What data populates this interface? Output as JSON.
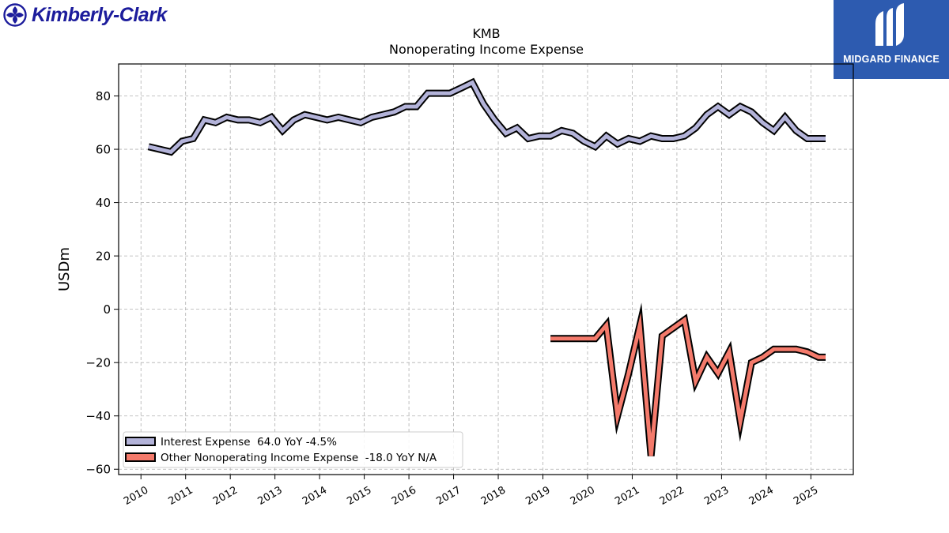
{
  "logos": {
    "left_brand": "Kimberly-Clark",
    "left_brand_color": "#1c1c9c",
    "right_brand": "MIDGARD FINANCE",
    "right_brand_color": "#2d5bb0"
  },
  "chart_data": {
    "type": "line",
    "title": "KMB",
    "subtitle": "Nonoperating Income Expense",
    "ylabel": "USDm",
    "xlabel": "",
    "xlim": [
      2009.5,
      2025.95
    ],
    "ylim": [
      -62,
      92
    ],
    "yticks": [
      -60,
      -40,
      -20,
      0,
      20,
      40,
      60,
      80
    ],
    "xticks": [
      2010,
      2011,
      2012,
      2013,
      2014,
      2015,
      2016,
      2017,
      2018,
      2019,
      2020,
      2021,
      2022,
      2023,
      2024,
      2025
    ],
    "grid": true,
    "legend_position": "lower-left",
    "series": [
      {
        "name": "Interest Expense",
        "legend_label": "Interest Expense  64.0 YoY -4.5%",
        "color": "#b3b3d9",
        "x": [
          2010.17,
          2010.42,
          2010.67,
          2010.92,
          2011.17,
          2011.42,
          2011.67,
          2011.92,
          2012.17,
          2012.42,
          2012.67,
          2012.92,
          2013.17,
          2013.42,
          2013.67,
          2013.92,
          2014.17,
          2014.42,
          2014.67,
          2014.92,
          2015.17,
          2015.42,
          2015.67,
          2015.92,
          2016.17,
          2016.42,
          2016.67,
          2016.92,
          2017.17,
          2017.42,
          2017.67,
          2017.92,
          2018.17,
          2018.42,
          2018.67,
          2018.92,
          2019.17,
          2019.42,
          2019.67,
          2019.92,
          2020.17,
          2020.42,
          2020.67,
          2020.92,
          2021.17,
          2021.42,
          2021.67,
          2021.92,
          2022.17,
          2022.42,
          2022.67,
          2022.92,
          2023.17,
          2023.42,
          2023.67,
          2023.92,
          2024.17,
          2024.42,
          2024.67,
          2024.92,
          2025.17,
          2025.33
        ],
        "values": [
          61,
          60,
          59,
          63,
          64,
          71,
          70,
          72,
          71,
          71,
          70,
          72,
          67,
          71,
          73,
          72,
          71,
          72,
          71,
          70,
          72,
          73,
          74,
          76,
          76,
          81,
          81,
          81,
          83,
          85,
          77,
          71,
          66,
          68,
          64,
          65,
          65,
          67,
          66,
          63,
          61,
          65,
          62,
          64,
          63,
          65,
          64,
          64,
          65,
          68,
          73,
          76,
          73,
          76,
          74,
          70,
          67,
          72,
          67,
          64,
          64,
          64
        ]
      },
      {
        "name": "Other Nonoperating Income Expense",
        "legend_label": "Other Nonoperating Income Expense  -18.0 YoY N/A",
        "color": "#f47a6b",
        "x": [
          2019.17,
          2019.42,
          2019.67,
          2019.92,
          2020.17,
          2020.42,
          2020.67,
          2020.92,
          2021.17,
          2021.42,
          2021.67,
          2021.92,
          2022.17,
          2022.42,
          2022.67,
          2022.92,
          2023.17,
          2023.42,
          2023.67,
          2023.92,
          2024.17,
          2024.42,
          2024.67,
          2024.92,
          2025.17,
          2025.33
        ],
        "values": [
          -11,
          -11,
          -11,
          -11,
          -11,
          -6,
          -40,
          -24,
          -6,
          -55,
          -10,
          -7,
          -4,
          -27,
          -18,
          -24,
          -16,
          -42,
          -20,
          -18,
          -15,
          -15,
          -15,
          -16,
          -18,
          -18
        ]
      }
    ]
  }
}
